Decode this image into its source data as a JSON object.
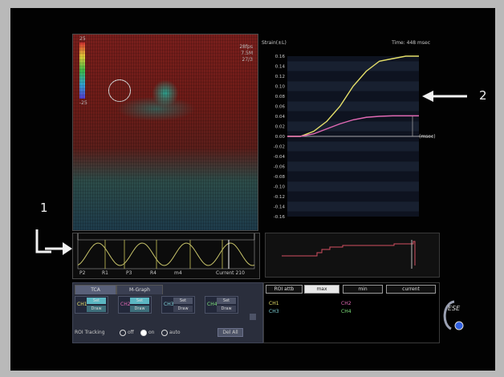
{
  "annotations": {
    "label1": "1",
    "label2": "2"
  },
  "strain": {
    "ylabel": "Strain(±L)",
    "time": "Time: 448 msec",
    "marker": "(msec)",
    "ticks": [
      "0.16",
      "0.14",
      "0.12",
      "0.10",
      "0.08",
      "0.06",
      "0.04",
      "0.02",
      "0.00",
      "-0.02",
      "-0.04",
      "-0.06",
      "-0.08",
      "-0.10",
      "-0.12",
      "-0.14",
      "-0.16"
    ]
  },
  "image": {
    "scale_top": "25",
    "scale_bottom": "-25",
    "readout": [
      "28fps",
      "7.5M",
      "27/3"
    ]
  },
  "trace": {
    "markers": [
      "P2",
      "R1",
      "P3",
      "R4",
      "m4"
    ],
    "current": "Current 210"
  },
  "controls": {
    "tabs": [
      "TCA",
      "M-Graph"
    ],
    "channels": [
      {
        "label": "CH1",
        "set": "Set",
        "draw": "Draw"
      },
      {
        "label": "CH2",
        "set": "Set",
        "draw": "Draw"
      },
      {
        "label": "CH3",
        "set": "Set",
        "draw": "Draw"
      },
      {
        "label": "CH4",
        "set": "Set",
        "draw": "Draw"
      }
    ],
    "roi_tracking": "ROI Tracking",
    "options": [
      "off",
      "on",
      "auto"
    ],
    "del_all": "Del All"
  },
  "results": {
    "tabs": [
      "ROI attb",
      "max",
      "min",
      "current"
    ],
    "channels": [
      "CH1",
      "CH2",
      "CH3",
      "CH4"
    ],
    "colors": [
      "#e6e06a",
      "#e26ab5",
      "#7fd3d9",
      "#7de07a"
    ]
  },
  "logo_text": "ESE",
  "chart_data": {
    "type": "line",
    "title": "",
    "xlabel": "",
    "ylabel": "Strain(±L)",
    "ylim": [
      -0.16,
      0.16
    ],
    "x": [
      0,
      10,
      20,
      30,
      40,
      50,
      60,
      70,
      80,
      90,
      100
    ],
    "series": [
      {
        "values": [
          0.0,
          0.0,
          0.01,
          0.03,
          0.06,
          0.1,
          0.13,
          0.15,
          0.155,
          0.16,
          0.16
        ]
      },
      {
        "values": [
          0.0,
          0.0,
          0.005,
          0.015,
          0.025,
          0.033,
          0.038,
          0.04,
          0.041,
          0.041,
          0.041
        ]
      }
    ]
  }
}
